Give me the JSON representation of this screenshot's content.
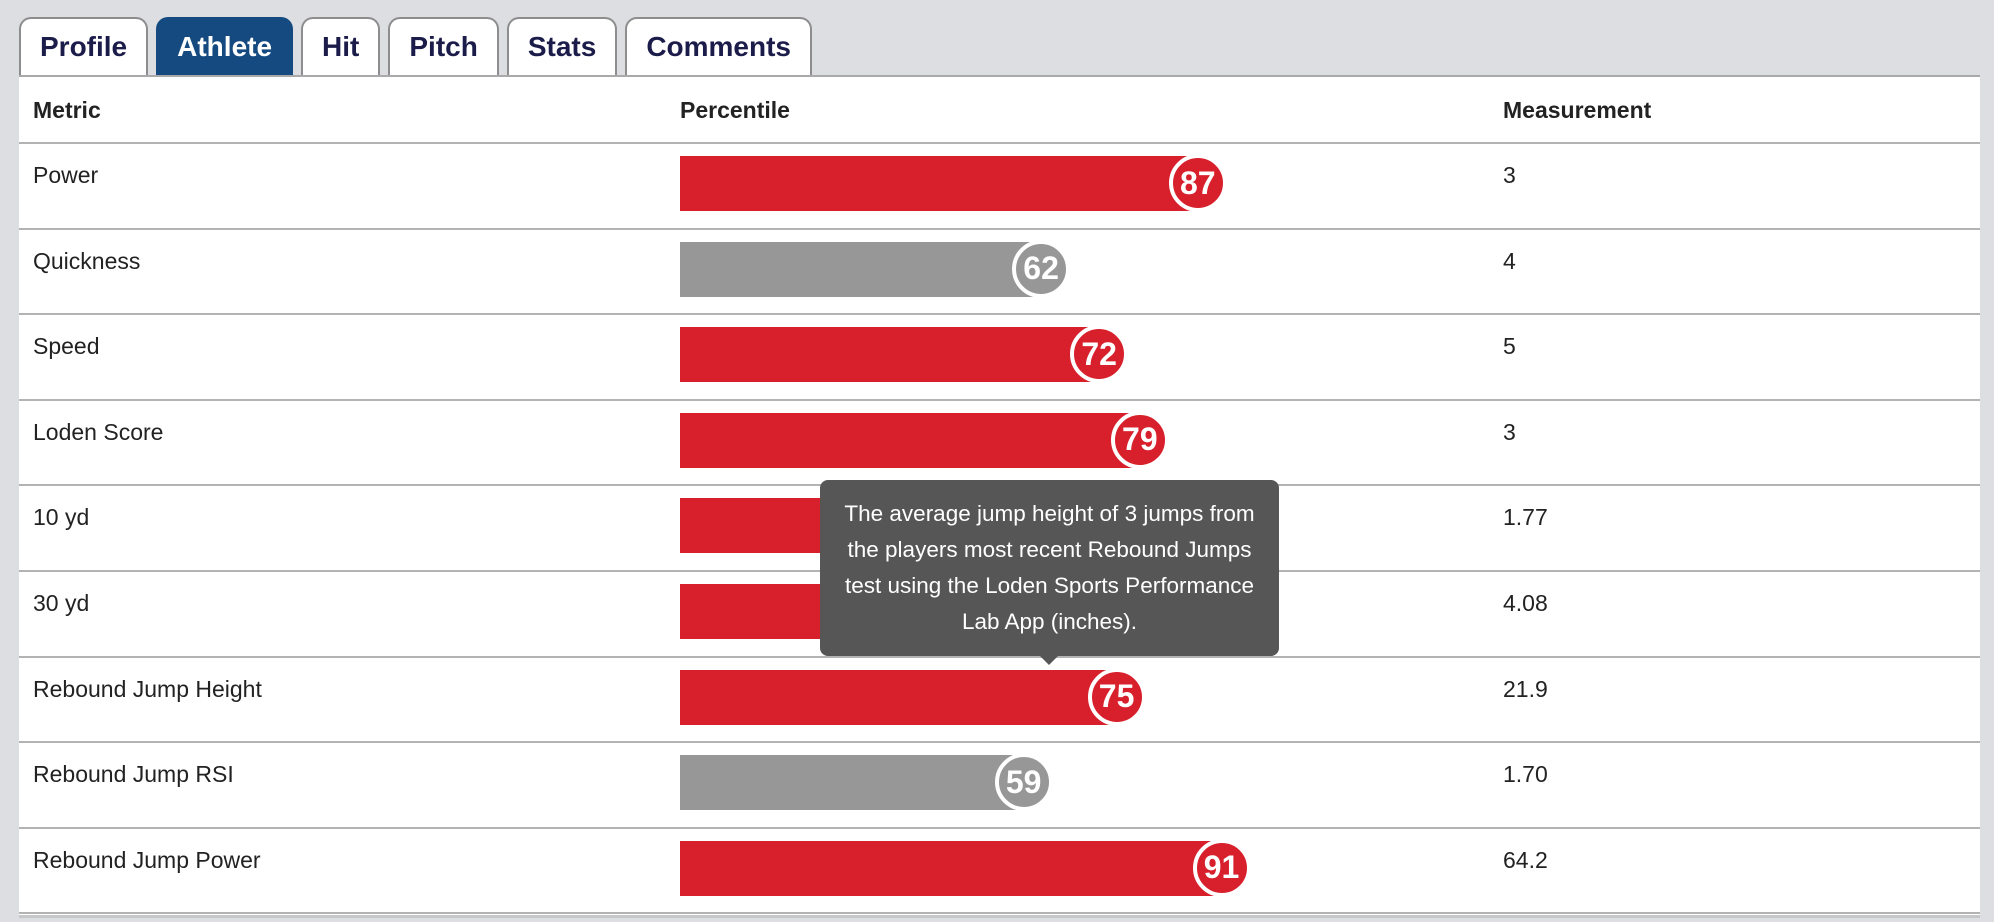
{
  "tabs": [
    "Profile",
    "Athlete",
    "Hit",
    "Pitch",
    "Stats",
    "Comments"
  ],
  "active_tab": "Athlete",
  "table": {
    "headers": {
      "metric": "Metric",
      "percentile": "Percentile",
      "measurement": "Measurement"
    },
    "rows": [
      {
        "metric": "Power",
        "percentile": "87",
        "measurement": "3",
        "bar_color": "red"
      },
      {
        "metric": "Quickness",
        "percentile": "62",
        "measurement": "4",
        "bar_color": "gray"
      },
      {
        "metric": "Speed",
        "percentile": "72",
        "measurement": "5",
        "bar_color": "red"
      },
      {
        "metric": "Loden Score",
        "percentile": "79",
        "measurement": "3",
        "bar_color": "red"
      },
      {
        "metric": "10 yd",
        "percentile": "",
        "measurement": "1.77",
        "bar_color": "red"
      },
      {
        "metric": "30 yd",
        "percentile": "",
        "measurement": "4.08",
        "bar_color": "red"
      },
      {
        "metric": "Rebound Jump Height",
        "percentile": "75",
        "measurement": "21.9",
        "bar_color": "red"
      },
      {
        "metric": "Rebound Jump RSI",
        "percentile": "59",
        "measurement": "1.70",
        "bar_color": "gray"
      },
      {
        "metric": "Rebound Jump Power",
        "percentile": "91",
        "measurement": "64.2",
        "bar_color": "red"
      }
    ]
  },
  "tooltip": {
    "text": "The average jump height of 3 jumps from the players most recent Rebound Jumps test using the Loden Sports Performance Lab App (inches)."
  },
  "colors": {
    "tab_active": "#144a80",
    "bar_high": "#d8202c",
    "bar_low": "#979797"
  }
}
